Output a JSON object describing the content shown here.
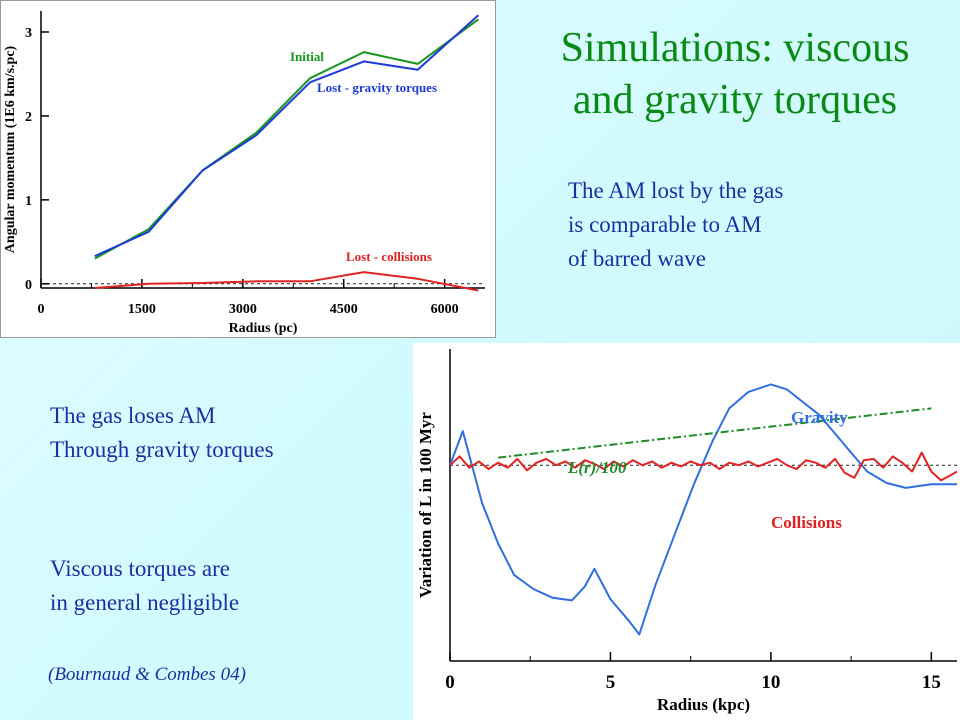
{
  "slide": {
    "title_line1": "Simulations: viscous",
    "title_line2": "and gravity torques",
    "note_top_line1": "The AM lost by the gas",
    "note_top_line2": "is comparable to AM",
    "note_top_line3": "of barred wave",
    "note_left_line1": "The gas loses  AM",
    "note_left_line2": "Through gravity torques",
    "note_viscous_line1": "Viscous torques are",
    "note_viscous_line2": "in general negligible",
    "citation": "(Bournaud & Combes 04)"
  },
  "colors": {
    "title": "#0a8a14",
    "text": "#1c2fa0",
    "initial": "#17961e",
    "gravity": "#1f3ad8",
    "collisions": "#e02222",
    "gravity_lower": "#2f6fe0",
    "lr_line": "#1f8a2a"
  },
  "chart_data": [
    {
      "type": "line",
      "xlabel": "Radius (pc)",
      "ylabel": "Angular momentum (1E6 km/s.pc)",
      "xlim": [
        0,
        6600
      ],
      "ylim": [
        -0.05,
        3.25
      ],
      "xticks": [
        0,
        1500,
        3000,
        4500,
        6000
      ],
      "xtick_labels": [
        "0",
        "1500",
        "3000",
        "4500",
        "6000"
      ],
      "yticks": [
        0,
        1,
        2,
        3
      ],
      "ytick_labels": [
        "0",
        "1",
        "2",
        "3"
      ],
      "zero_line": true,
      "grid": false,
      "series": [
        {
          "name": "Initial",
          "color_key": "initial",
          "x": [
            800,
            1600,
            2400,
            3200,
            4000,
            4800,
            5600,
            6500
          ],
          "y": [
            0.3,
            0.65,
            1.35,
            1.8,
            2.45,
            2.76,
            2.62,
            3.15
          ]
        },
        {
          "name": "Lost - gravity torques",
          "color_key": "gravity",
          "x": [
            800,
            1600,
            2400,
            3200,
            4000,
            4800,
            5600,
            6500
          ],
          "y": [
            0.33,
            0.62,
            1.35,
            1.77,
            2.4,
            2.65,
            2.55,
            3.2
          ]
        },
        {
          "name": "Lost - collisions",
          "color_key": "collisions",
          "x": [
            800,
            1600,
            2400,
            3200,
            4000,
            4800,
            5600,
            6500
          ],
          "y": [
            -0.05,
            0.0,
            0.01,
            0.03,
            0.03,
            0.14,
            0.06,
            -0.08
          ]
        }
      ]
    },
    {
      "type": "line",
      "xlabel": "Radius (kpc)",
      "ylabel": "Variation of L in 100 Myr",
      "xlim": [
        0,
        15.8
      ],
      "ylim": [
        -1.55,
        0.92
      ],
      "xticks": [
        0,
        5,
        10,
        15
      ],
      "xtick_labels": [
        "0",
        "5",
        "10",
        "15"
      ],
      "zero_line": true,
      "grid": false,
      "series": [
        {
          "name": "Gravity",
          "color_key": "gravity_lower",
          "x": [
            0,
            0.4,
            1.0,
            1.5,
            2.0,
            2.6,
            3.2,
            3.8,
            4.2,
            4.5,
            5.0,
            5.6,
            5.9,
            6.4,
            7.0,
            7.6,
            8.2,
            8.7,
            9.3,
            10.0,
            10.5,
            11.0,
            11.5,
            12.0,
            12.5,
            13.0,
            13.6,
            14.2,
            15.0,
            15.8
          ],
          "y": [
            0.0,
            0.27,
            -0.3,
            -0.62,
            -0.87,
            -0.98,
            -1.05,
            -1.07,
            -0.96,
            -0.82,
            -1.06,
            -1.24,
            -1.34,
            -0.95,
            -0.55,
            -0.15,
            0.2,
            0.45,
            0.58,
            0.64,
            0.6,
            0.5,
            0.4,
            0.25,
            0.1,
            -0.05,
            -0.14,
            -0.18,
            -0.15,
            -0.15
          ]
        },
        {
          "name": "Collisions",
          "color_key": "collisions",
          "x": [
            0.0,
            0.3,
            0.6,
            0.9,
            1.2,
            1.5,
            1.8,
            2.1,
            2.4,
            2.7,
            3.0,
            3.3,
            3.6,
            3.9,
            4.2,
            4.5,
            4.8,
            5.1,
            5.4,
            5.7,
            6.0,
            6.3,
            6.6,
            6.9,
            7.2,
            7.5,
            7.8,
            8.1,
            8.4,
            8.7,
            9.0,
            9.3,
            9.6,
            9.9,
            10.2,
            10.5,
            10.8,
            11.1,
            11.4,
            11.7,
            12.0,
            12.3,
            12.6,
            12.9,
            13.2,
            13.5,
            13.8,
            14.1,
            14.4,
            14.7,
            15.0,
            15.3,
            15.6,
            15.8
          ],
          "y": [
            0.0,
            0.07,
            -0.02,
            0.03,
            -0.03,
            0.02,
            -0.02,
            0.05,
            -0.04,
            0.02,
            0.05,
            0.0,
            0.03,
            -0.02,
            0.04,
            0.01,
            -0.03,
            0.03,
            -0.01,
            0.04,
            0.0,
            0.03,
            -0.02,
            0.02,
            -0.01,
            0.03,
            0.0,
            0.02,
            -0.03,
            0.02,
            0.0,
            0.03,
            -0.01,
            0.02,
            0.05,
            0.0,
            -0.03,
            0.04,
            0.02,
            -0.02,
            0.05,
            -0.06,
            -0.1,
            0.04,
            0.05,
            -0.02,
            0.07,
            0.02,
            -0.05,
            0.1,
            -0.05,
            -0.12,
            -0.08,
            -0.05
          ]
        },
        {
          "name": "L(r)/100",
          "color_key": "lr_line",
          "x": [
            1.5,
            15.0
          ],
          "y": [
            0.06,
            0.45
          ]
        }
      ]
    }
  ]
}
